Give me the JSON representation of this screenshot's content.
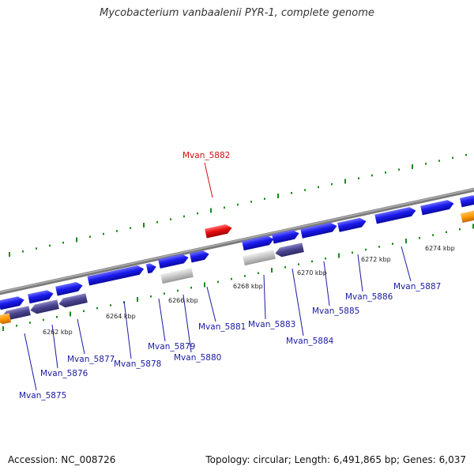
{
  "title": "Mycobacterium vanbaalenii PYR-1, complete genome",
  "footer": {
    "accession": "Accession: NC_008726",
    "summary": "Topology: circular; Length: 6,491,865 bp; Genes: 6,037"
  },
  "colors": {
    "gene_forward": "#1a1aee",
    "gene_reverse": "#4b4690",
    "highlight": "#e81010",
    "pseudo": "#c0c0c0",
    "rna": "#ff9900",
    "backbone": "#808080",
    "gc_ticks": "#1a8a1a",
    "label_normal": "#1a1aa0",
    "label_highlight": "#cc1010"
  },
  "scale_labels": [
    "6262 kbp",
    "6264 kbp",
    "6266 kbp",
    "6268 kbp",
    "6270 kbp",
    "6272 kbp",
    "6274 kbp"
  ],
  "gene_labels": [
    {
      "text": "Mvan_5875",
      "highlight": false
    },
    {
      "text": "Mvan_5876",
      "highlight": false
    },
    {
      "text": "Mvan_5877",
      "highlight": false
    },
    {
      "text": "Mvan_5878",
      "highlight": false
    },
    {
      "text": "Mvan_5879",
      "highlight": false
    },
    {
      "text": "Mvan_5880",
      "highlight": false
    },
    {
      "text": "Mvan_5881",
      "highlight": false
    },
    {
      "text": "Mvan_5882",
      "highlight": true
    },
    {
      "text": "Mvan_5883",
      "highlight": false
    },
    {
      "text": "Mvan_5884",
      "highlight": false
    },
    {
      "text": "Mvan_5885",
      "highlight": false
    },
    {
      "text": "Mvan_5886",
      "highlight": false
    },
    {
      "text": "Mvan_5887",
      "highlight": false
    }
  ]
}
